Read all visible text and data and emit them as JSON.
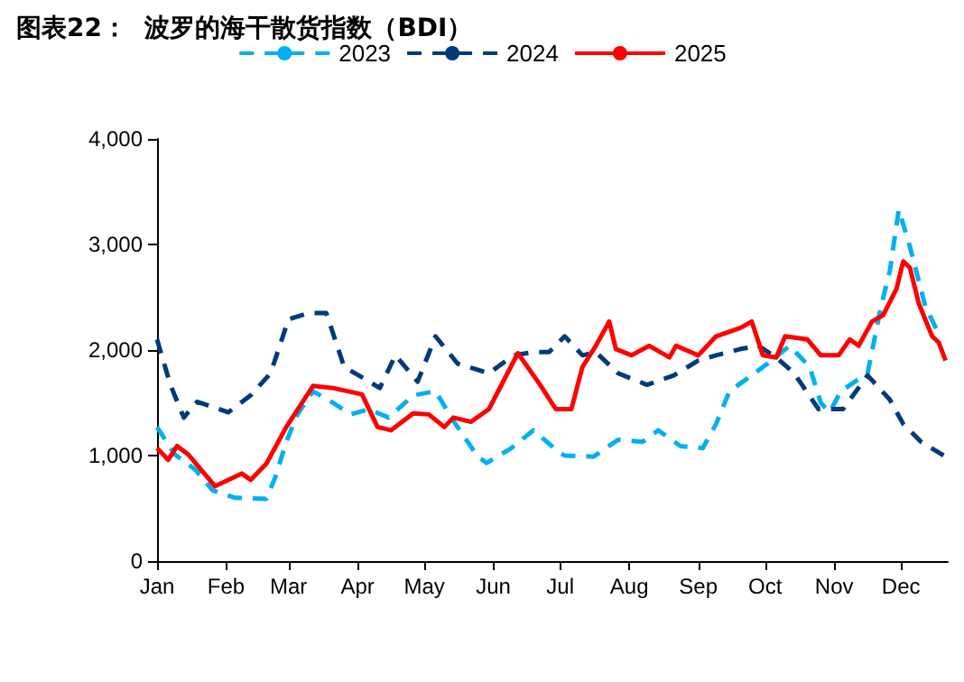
{
  "chart_data": {
    "type": "line",
    "title": "图表22：  波罗的海干散货指数（BDI）",
    "legend": "top",
    "marker": "none",
    "grid": false,
    "xlim": [
      "--01-01",
      "--12-22"
    ],
    "xticks": [
      {
        "value": "--01-01",
        "label": "Jan"
      },
      {
        "value": "--02-01",
        "label": "Feb"
      },
      {
        "value": "--03-01",
        "label": "Mar"
      },
      {
        "value": "--04-01",
        "label": "Apr"
      },
      {
        "value": "--05-01",
        "label": "May"
      },
      {
        "value": "--06-01",
        "label": "Jun"
      },
      {
        "value": "--07-01",
        "label": "Jul"
      },
      {
        "value": "--08-01",
        "label": "Aug"
      },
      {
        "value": "--09-01",
        "label": "Sep"
      },
      {
        "value": "--10-01",
        "label": "Oct"
      },
      {
        "value": "--11-01",
        "label": "Nov"
      },
      {
        "value": "--12-01",
        "label": "Dec"
      }
    ],
    "ylim": [
      0,
      4000
    ],
    "yticks": [
      {
        "value": 0,
        "label": "0"
      },
      {
        "value": 1000,
        "label": "1,000"
      },
      {
        "value": 2000,
        "label": "2,000"
      },
      {
        "value": 3000,
        "label": "3,000"
      },
      {
        "value": 4000,
        "label": "4,000"
      }
    ],
    "series": [
      {
        "name": "2023",
        "color": "#00b0f0",
        "line_style": "dashed",
        "x": [
          "--01-01",
          "--01-09",
          "--01-18",
          "--01-26",
          "--02-05",
          "--02-19",
          "--02-23",
          "--02-28",
          "--03-05",
          "--03-12",
          "--03-21",
          "--03-29",
          "--04-06",
          "--04-15",
          "--04-26",
          "--05-06",
          "--05-14",
          "--05-25",
          "--05-29",
          "--06-09",
          "--06-19",
          "--06-30",
          "--07-03",
          "--07-16",
          "--07-27",
          "--08-07",
          "--08-14",
          "--08-24",
          "--09-03",
          "--09-09",
          "--09-15",
          "--09-23",
          "--10-02",
          "--10-12",
          "--10-21",
          "--10-26",
          "--10-30",
          "--11-04",
          "--11-16",
          "--11-22",
          "--11-26",
          "--11-30",
          "--12-05",
          "--12-12",
          "--12-18"
        ],
        "values": [
          1270,
          1010,
          870,
          670,
          600,
          590,
          790,
          1130,
          1390,
          1610,
          1500,
          1390,
          1440,
          1360,
          1570,
          1610,
          1330,
          990,
          930,
          1070,
          1240,
          1040,
          1000,
          990,
          1150,
          1130,
          1240,
          1090,
          1070,
          1300,
          1610,
          1730,
          1870,
          2040,
          1840,
          1500,
          1410,
          1610,
          1780,
          2410,
          2750,
          3330,
          2980,
          2410,
          2150
        ]
      },
      {
        "name": "2024",
        "color": "#003a7a",
        "line_style": "dashed",
        "x": [
          "--01-01",
          "--01-07",
          "--01-13",
          "--01-19",
          "--02-02",
          "--02-12",
          "--02-21",
          "--03-01",
          "--03-10",
          "--03-18",
          "--03-26",
          "--04-04",
          "--04-11",
          "--04-18",
          "--04-28",
          "--05-06",
          "--05-16",
          "--05-30",
          "--06-10",
          "--06-19",
          "--06-26",
          "--07-03",
          "--07-11",
          "--07-17",
          "--07-27",
          "--08-09",
          "--08-21",
          "--09-01",
          "--09-09",
          "--09-20",
          "--09-28",
          "--10-06",
          "--10-14",
          "--10-25",
          "--11-05",
          "--11-16",
          "--11-26",
          "--12-02",
          "--12-10",
          "--12-21"
        ],
        "values": [
          2100,
          1670,
          1360,
          1510,
          1410,
          1570,
          1780,
          2290,
          2350,
          2350,
          1840,
          1730,
          1640,
          1950,
          1700,
          2130,
          1870,
          1780,
          1950,
          1980,
          1980,
          2130,
          1950,
          1980,
          1780,
          1670,
          1760,
          1900,
          1950,
          2010,
          2040,
          1930,
          1780,
          1440,
          1440,
          1760,
          1530,
          1300,
          1130,
          990
        ]
      },
      {
        "name": "2025",
        "color": "#ff0000",
        "line_style": "solid",
        "x": [
          "--01-01",
          "--01-06",
          "--01-10",
          "--01-15",
          "--01-27",
          "--02-08",
          "--02-12",
          "--02-19",
          "--02-28",
          "--03-12",
          "--03-21",
          "--04-03",
          "--04-10",
          "--04-16",
          "--04-26",
          "--05-03",
          "--05-10",
          "--05-14",
          "--05-22",
          "--05-30",
          "--06-12",
          "--06-22",
          "--06-29",
          "--07-06",
          "--07-11",
          "--07-17",
          "--07-23",
          "--07-26",
          "--08-02",
          "--08-10",
          "--08-19",
          "--08-22",
          "--09-01",
          "--09-09",
          "--09-20",
          "--09-25",
          "--09-30",
          "--10-06",
          "--10-10",
          "--10-20",
          "--10-26",
          "--11-03",
          "--11-08",
          "--11-12",
          "--11-18",
          "--11-23",
          "--11-29",
          "--12-02",
          "--12-05",
          "--12-09",
          "--12-15",
          "--12-18",
          "--12-21"
        ],
        "values": [
          1070,
          960,
          1090,
          1010,
          710,
          830,
          770,
          920,
          1270,
          1660,
          1640,
          1580,
          1270,
          1240,
          1400,
          1390,
          1270,
          1360,
          1320,
          1440,
          1970,
          1670,
          1440,
          1440,
          1840,
          2040,
          2270,
          2010,
          1950,
          2040,
          1930,
          2040,
          1950,
          2130,
          2210,
          2270,
          1950,
          1930,
          2130,
          2100,
          1950,
          1950,
          2100,
          2040,
          2270,
          2330,
          2580,
          2840,
          2780,
          2440,
          2130,
          2070,
          1900
        ]
      }
    ]
  }
}
